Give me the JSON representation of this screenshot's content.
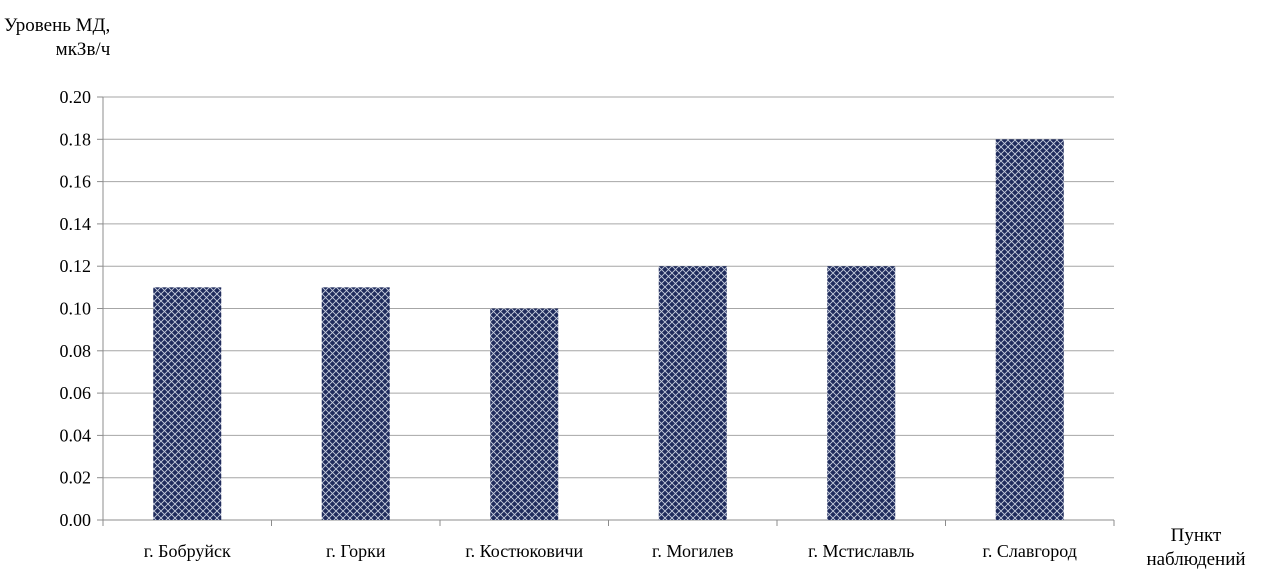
{
  "chart_data": {
    "type": "bar",
    "ylabel_lines": [
      "Уровень МД,",
      "мкЗв/ч"
    ],
    "xlabel_lines": [
      "Пункт",
      "наблюдений"
    ],
    "categories": [
      "г. Бобруйск",
      "г. Горки",
      "г. Костюковичи",
      "г. Могилев",
      "г. Мстиславль",
      "г. Славгород"
    ],
    "values": [
      0.11,
      0.11,
      0.1,
      0.12,
      0.12,
      0.18
    ],
    "ylim": [
      0,
      0.2
    ],
    "yticks": [
      "0.00",
      "0.02",
      "0.04",
      "0.06",
      "0.08",
      "0.10",
      "0.12",
      "0.14",
      "0.16",
      "0.18",
      "0.20"
    ],
    "grid": true,
    "legend": "none",
    "bar_color": "#1f2b5c",
    "bar_pattern": "crosshatch"
  }
}
